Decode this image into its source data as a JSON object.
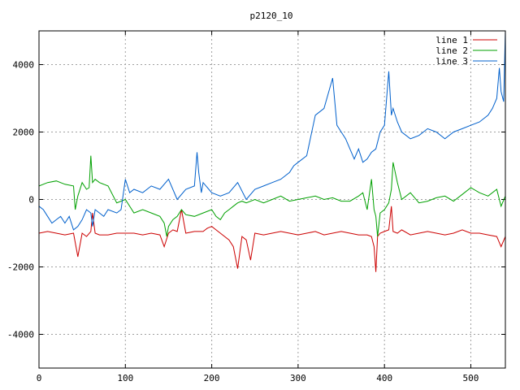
{
  "chart_data": {
    "type": "line",
    "title": "p2120_10",
    "xlabel": "",
    "ylabel": "",
    "xlim": [
      0,
      540
    ],
    "ylim": [
      -5000,
      5000
    ],
    "xticks": [
      0,
      100,
      200,
      300,
      400,
      500
    ],
    "yticks": [
      -4000,
      -2000,
      0,
      2000,
      4000
    ],
    "grid": true,
    "legend_position": "top-right",
    "series": [
      {
        "name": "line 1",
        "color": "#cc0000",
        "x": [
          0,
          10,
          20,
          30,
          40,
          45,
          50,
          55,
          60,
          62,
          65,
          70,
          80,
          90,
          100,
          110,
          120,
          130,
          140,
          145,
          150,
          155,
          160,
          165,
          170,
          180,
          190,
          195,
          200,
          205,
          210,
          220,
          225,
          230,
          235,
          240,
          245,
          250,
          260,
          270,
          280,
          290,
          300,
          310,
          320,
          330,
          340,
          350,
          360,
          370,
          380,
          385,
          388,
          390,
          392,
          395,
          400,
          405,
          408,
          410,
          415,
          420,
          430,
          440,
          450,
          460,
          470,
          480,
          490,
          500,
          510,
          520,
          530,
          535,
          540
        ],
        "values": [
          -1000,
          -950,
          -1000,
          -1050,
          -1000,
          -1700,
          -1000,
          -1100,
          -950,
          -400,
          -1000,
          -1050,
          -1050,
          -1000,
          -1000,
          -1000,
          -1050,
          -1000,
          -1050,
          -1400,
          -1000,
          -900,
          -950,
          -300,
          -1000,
          -950,
          -950,
          -850,
          -800,
          -900,
          -1000,
          -1200,
          -1400,
          -2050,
          -1100,
          -1200,
          -1800,
          -1000,
          -1050,
          -1000,
          -950,
          -1000,
          -1050,
          -1000,
          -950,
          -1050,
          -1000,
          -950,
          -1000,
          -1050,
          -1050,
          -1100,
          -1400,
          -2150,
          -1100,
          -1000,
          -950,
          -900,
          -200,
          -950,
          -1000,
          -900,
          -1050,
          -1000,
          -950,
          -1000,
          -1050,
          -1000,
          -900,
          -1000,
          -1000,
          -1050,
          -1100,
          -1400,
          -1100
        ]
      },
      {
        "name": "line 2",
        "color": "#00a000",
        "x": [
          0,
          10,
          20,
          30,
          40,
          42,
          45,
          50,
          55,
          58,
          60,
          62,
          65,
          70,
          80,
          90,
          100,
          110,
          120,
          130,
          140,
          145,
          148,
          150,
          155,
          160,
          165,
          170,
          180,
          190,
          200,
          205,
          210,
          215,
          220,
          225,
          230,
          235,
          240,
          250,
          260,
          270,
          280,
          290,
          300,
          310,
          320,
          330,
          340,
          350,
          360,
          370,
          375,
          380,
          385,
          388,
          390,
          392,
          395,
          400,
          405,
          408,
          410,
          415,
          420,
          430,
          440,
          450,
          460,
          470,
          480,
          490,
          500,
          510,
          520,
          530,
          535,
          540
        ],
        "values": [
          400,
          500,
          550,
          450,
          400,
          -300,
          100,
          500,
          300,
          350,
          1300,
          500,
          600,
          500,
          400,
          -100,
          0,
          -400,
          -300,
          -400,
          -500,
          -700,
          -1100,
          -800,
          -600,
          -500,
          -300,
          -450,
          -500,
          -400,
          -300,
          -500,
          -600,
          -400,
          -300,
          -200,
          -100,
          -50,
          -100,
          0,
          -100,
          0,
          100,
          -50,
          0,
          50,
          100,
          0,
          50,
          -50,
          -50,
          100,
          200,
          -300,
          600,
          -300,
          -500,
          -1100,
          -400,
          -300,
          -100,
          300,
          1100,
          500,
          0,
          200,
          -100,
          -50,
          50,
          100,
          -50,
          150,
          350,
          200,
          100,
          300,
          -200,
          100
        ]
      },
      {
        "name": "line 3",
        "color": "#0060cc",
        "x": [
          0,
          5,
          10,
          15,
          20,
          25,
          30,
          35,
          40,
          45,
          50,
          55,
          60,
          62,
          65,
          70,
          75,
          80,
          90,
          95,
          100,
          105,
          110,
          120,
          130,
          140,
          150,
          160,
          170,
          180,
          183,
          185,
          188,
          190,
          200,
          210,
          220,
          230,
          240,
          250,
          260,
          270,
          280,
          290,
          295,
          300,
          310,
          320,
          330,
          340,
          345,
          350,
          355,
          360,
          365,
          370,
          375,
          380,
          385,
          390,
          395,
          400,
          405,
          408,
          410,
          415,
          420,
          430,
          440,
          450,
          460,
          470,
          480,
          490,
          500,
          510,
          520,
          525,
          530,
          533,
          535,
          538,
          540
        ],
        "values": [
          -200,
          -300,
          -500,
          -700,
          -600,
          -500,
          -700,
          -500,
          -900,
          -800,
          -600,
          -300,
          -400,
          -800,
          -300,
          -400,
          -500,
          -300,
          -400,
          -300,
          600,
          200,
          300,
          200,
          400,
          300,
          600,
          0,
          300,
          400,
          1400,
          800,
          200,
          500,
          200,
          100,
          200,
          500,
          0,
          300,
          400,
          500,
          600,
          800,
          1000,
          1100,
          1300,
          2500,
          2700,
          3600,
          2200,
          2000,
          1800,
          1500,
          1200,
          1500,
          1100,
          1200,
          1400,
          1500,
          2000,
          2200,
          3800,
          2500,
          2700,
          2300,
          2000,
          1800,
          1900,
          2100,
          2000,
          1800,
          2000,
          2100,
          2200,
          2300,
          2500,
          2700,
          3000,
          3900,
          3200,
          2900,
          5000
        ]
      }
    ]
  }
}
